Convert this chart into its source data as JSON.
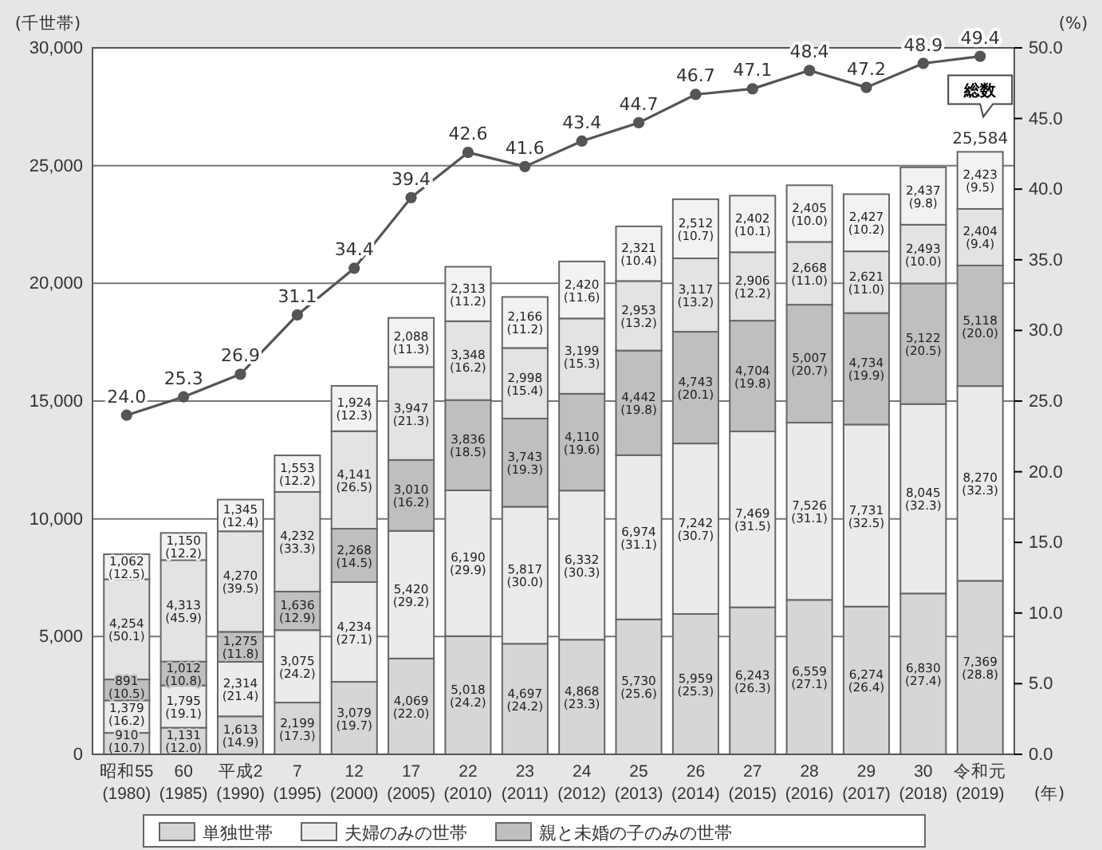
{
  "chart_data": {
    "type": "bar",
    "stacked": true,
    "ylabel": "(千世帯)",
    "y2label": "(%)",
    "xlabel": "(年)",
    "categories": [
      "昭和55 (1980)",
      "60 (1985)",
      "平成2 (1990)",
      "7 (1995)",
      "12 (2000)",
      "17 (2005)",
      "22 (2010)",
      "23 (2011)",
      "24 (2012)",
      "25 (2013)",
      "26 (2014)",
      "27 (2015)",
      "28 (2016)",
      "29 (2017)",
      "30 (2018)",
      "令和元 (2019)"
    ],
    "ylim": [
      0,
      30000
    ],
    "yticks": [
      {
        "value": 0,
        "label": "0"
      },
      {
        "value": 5000,
        "label": "5,000"
      },
      {
        "value": 10000,
        "label": "10,000"
      },
      {
        "value": 15000,
        "label": "15,000"
      },
      {
        "value": 20000,
        "label": "20,000"
      },
      {
        "value": 25000,
        "label": "25,000"
      },
      {
        "value": 30000,
        "label": "30,000"
      }
    ],
    "y2lim": [
      0,
      50
    ],
    "y2ticks": [
      {
        "value": 0,
        "label": "0.0"
      },
      {
        "value": 5,
        "label": "5.0"
      },
      {
        "value": 10,
        "label": "10.0"
      },
      {
        "value": 15,
        "label": "15.0"
      },
      {
        "value": 20,
        "label": "20.0"
      },
      {
        "value": 25,
        "label": "25.0"
      },
      {
        "value": 30,
        "label": "30.0"
      },
      {
        "value": 35,
        "label": "35.0"
      },
      {
        "value": 40,
        "label": "40.0"
      },
      {
        "value": 45,
        "label": "45.0"
      },
      {
        "value": 50,
        "label": "50.0"
      }
    ],
    "grid": "y",
    "legend": "bottom",
    "series": [
      {
        "name": "単独世帯",
        "color": "#d6d6d6",
        "values": [
          910,
          1131,
          1613,
          2199,
          3079,
          4069,
          5018,
          4697,
          4868,
          5730,
          5959,
          6243,
          6559,
          6274,
          6830,
          7369
        ],
        "value_labels": [
          "910 (10.7)",
          "1,131 (12.0)",
          "1,613 (14.9)",
          "2,199 (17.3)",
          "3,079 (19.7)",
          "4,069 (22.0)",
          "5,018 (24.2)",
          "4,697 (24.2)",
          "4,868 (23.3)",
          "5,730 (25.6)",
          "5,959 (25.3)",
          "6,243 (26.3)",
          "6,559 (27.1)",
          "6,274 (26.4)",
          "6,830 (27.4)",
          "7,369 (28.8)"
        ]
      },
      {
        "name": "夫婦のみの世帯",
        "color": "#ebebeb",
        "values": [
          1379,
          1795,
          2314,
          3075,
          4234,
          5420,
          6190,
          5817,
          6332,
          6974,
          7242,
          7469,
          7526,
          7731,
          8045,
          8270
        ],
        "value_labels": [
          "1,379 (16.2)",
          "1,795 (19.1)",
          "2,314 (21.4)",
          "3,075 (24.2)",
          "4,234 (27.1)",
          "5,420 (29.2)",
          "6,190 (29.9)",
          "5,817 (30.0)",
          "6,332 (30.3)",
          "6,974 (31.1)",
          "7,242 (30.7)",
          "7,469 (31.5)",
          "7,526 (31.1)",
          "7,731 (32.5)",
          "8,045 (32.3)",
          "8,270 (32.3)"
        ]
      },
      {
        "name": "親と未婚の子のみの世帯",
        "color": "#bfbfbf",
        "values": [
          891,
          1012,
          1275,
          1636,
          2268,
          3010,
          3836,
          3743,
          4110,
          4442,
          4743,
          4704,
          5007,
          4734,
          5122,
          5118
        ],
        "value_labels": [
          "891 (10.5)",
          "1,012 (10.8)",
          "1,275 (11.8)",
          "1,636 (12.9)",
          "2,268 (14.5)",
          "3,010 (16.2)",
          "3,836 (18.5)",
          "3,743 (19.3)",
          "4,110 (19.6)",
          "4,442 (19.8)",
          "4,743 (20.1)",
          "4,704 (19.8)",
          "5,007 (20.7)",
          "4,734 (19.9)",
          "5,122 (20.5)",
          "5,118 (20.0)"
        ]
      },
      {
        "color": "#e3e3e3",
        "values": [
          4254,
          4313,
          4270,
          4232,
          4141,
          3947,
          3348,
          2998,
          3199,
          2953,
          3117,
          2906,
          2668,
          2621,
          2493,
          2404
        ],
        "value_labels": [
          "4,254 (50.1)",
          "4,313 (45.9)",
          "4,270 (39.5)",
          "4,232 (33.3)",
          "4,141 (26.5)",
          "3,947 (21.3)",
          "3,348 (16.2)",
          "2,998 (15.4)",
          "3,199 (15.3)",
          "2,953 (13.2)",
          "3,117 (13.2)",
          "2,906 (12.2)",
          "2,668 (11.0)",
          "2,621 (11.0)",
          "2,493 (10.0)",
          "2,404 (9.4)"
        ]
      },
      {
        "color": "#f2f2f2",
        "values": [
          1062,
          1150,
          1345,
          1553,
          1924,
          2088,
          2313,
          2166,
          2420,
          2321,
          2512,
          2402,
          2405,
          2427,
          2437,
          2423
        ],
        "value_labels": [
          "1,062 (12.5)",
          "1,150 (12.2)",
          "1,345 (12.4)",
          "1,553 (12.2)",
          "1,924 (12.3)",
          "2,088 (11.3)",
          "2,313 (11.2)",
          "2,166 (11.2)",
          "2,420 (11.6)",
          "2,321 (10.4)",
          "2,512 (10.7)",
          "2,402 (10.1)",
          "2,405 (10.0)",
          "2,427 (10.2)",
          "2,437 (9.8)",
          "2,423 (9.5)"
        ]
      },
      {
        "type": "line",
        "axis": "y2",
        "color": "#555555",
        "marker": "circle",
        "values": [
          24.0,
          25.3,
          26.9,
          31.1,
          34.4,
          39.4,
          42.6,
          41.6,
          43.4,
          44.7,
          46.7,
          47.1,
          48.4,
          47.2,
          48.9,
          49.4
        ],
        "value_labels": [
          "24.0",
          "25.3",
          "26.9",
          "31.1",
          "34.4",
          "39.4",
          "42.6",
          "41.6",
          "43.4",
          "44.7",
          "46.7",
          "47.1",
          "48.4",
          "47.2",
          "48.9",
          "49.4"
        ]
      }
    ],
    "totals": [
      null,
      null,
      null,
      null,
      null,
      null,
      null,
      null,
      null,
      null,
      null,
      null,
      null,
      null,
      null,
      "25,584"
    ],
    "annotations": [
      "総数"
    ]
  }
}
